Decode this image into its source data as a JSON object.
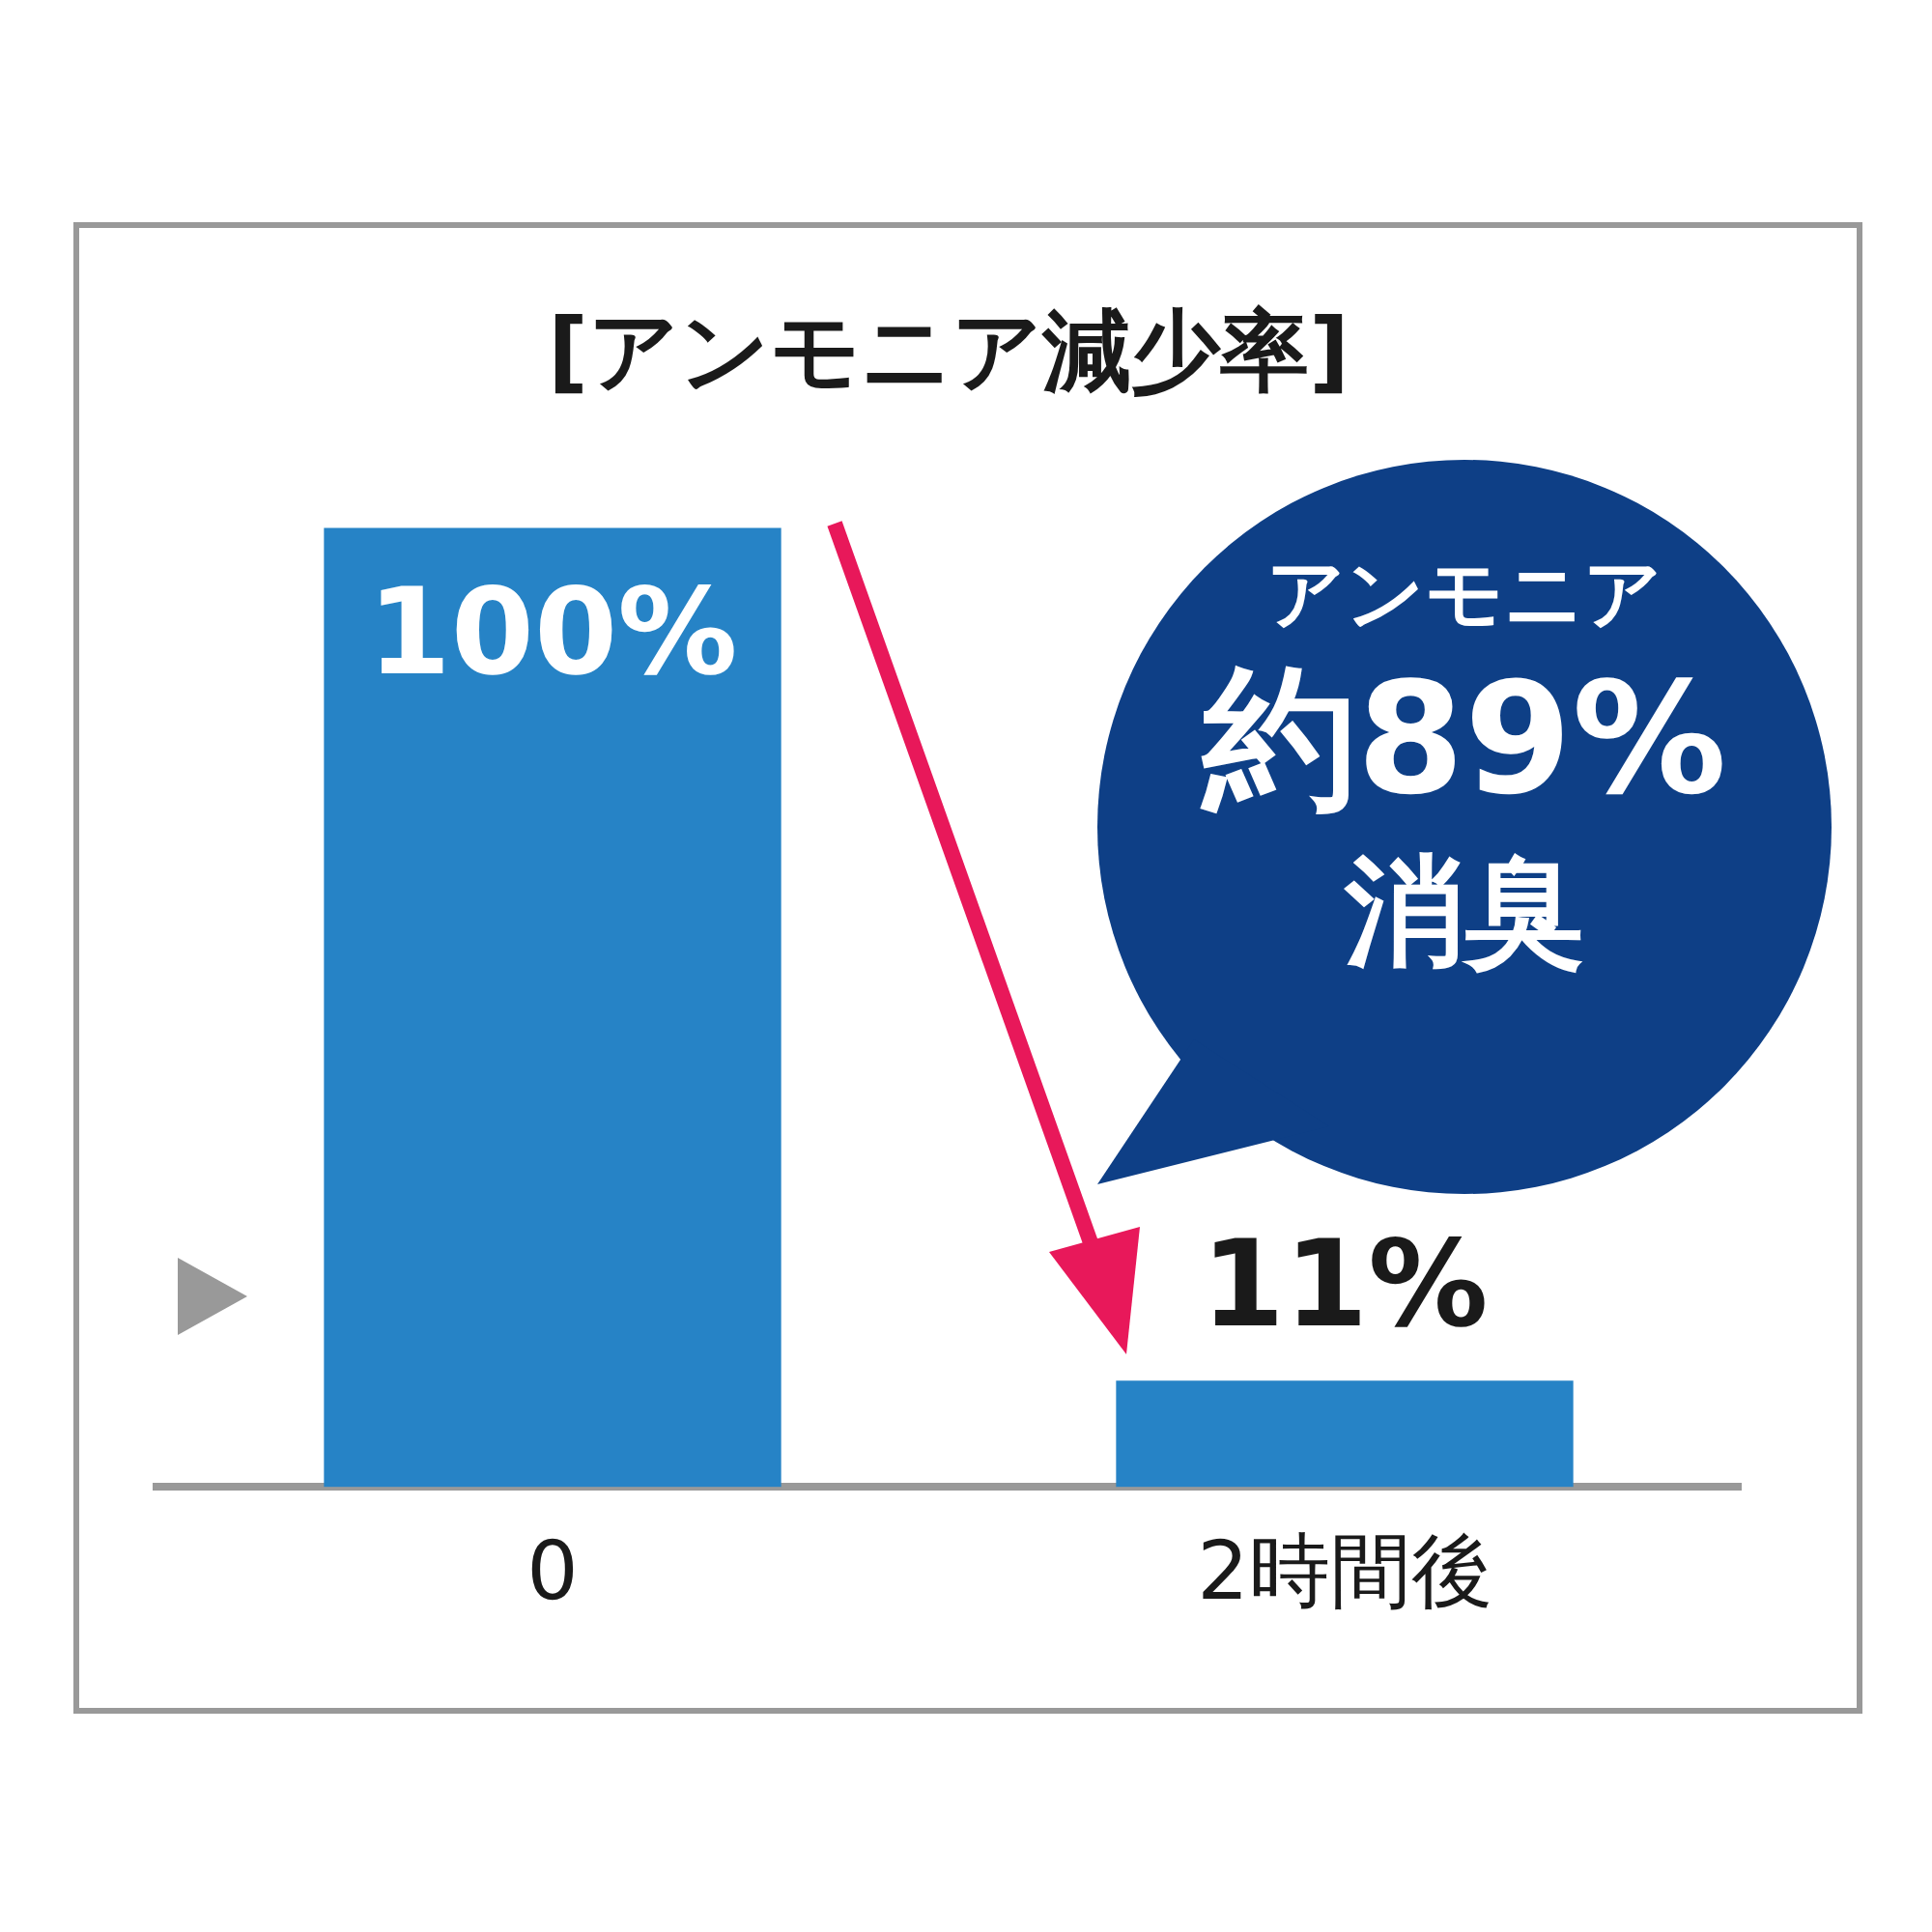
{
  "chart_data": {
    "type": "bar",
    "title": "[アンモニア減少率]",
    "categories": [
      "0",
      "2時間後"
    ],
    "values": [
      100,
      11
    ],
    "color": "#2683c6",
    "value_labels": [
      "100%",
      "11%"
    ],
    "annotations": [
      "アンモニア",
      "約89%",
      "消臭"
    ],
    "legend": false,
    "grid": false
  }
}
